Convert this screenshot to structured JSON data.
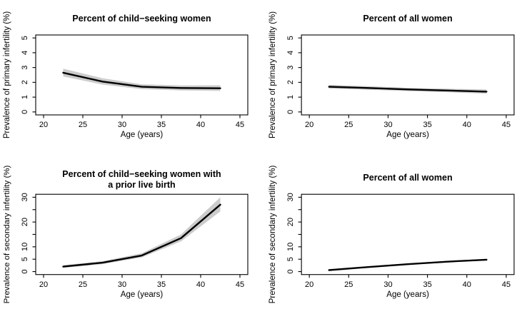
{
  "figure": {
    "background": "#ffffff",
    "line_color": "#000000",
    "band_color": "#cccccc",
    "axis_color": "#000000"
  },
  "chart_data": [
    {
      "id": "primary-infertility-child-seeking",
      "type": "line",
      "title_lines": [
        "Percent of child−seeking women"
      ],
      "xlabel": "Age (years)",
      "ylabel": "Prevalence of primary infertility (%)",
      "xlim": [
        20,
        45
      ],
      "ylim": [
        0,
        5
      ],
      "xticks": [
        20,
        25,
        30,
        35,
        40,
        45
      ],
      "xtick_labels": [
        "20",
        "25",
        "30",
        "35",
        "40",
        "45"
      ],
      "yticks": [
        0,
        1,
        2,
        3,
        4,
        5
      ],
      "ytick_labels": [
        "0",
        "1",
        "2",
        "3",
        "4",
        "5"
      ],
      "x": [
        22.5,
        27.5,
        32.5,
        37.5,
        42.5
      ],
      "y": [
        2.65,
        2.05,
        1.7,
        1.62,
        1.6
      ],
      "ci_upper": [
        2.92,
        2.28,
        1.87,
        1.79,
        1.8
      ],
      "ci_lower": [
        2.4,
        1.85,
        1.54,
        1.45,
        1.42
      ],
      "grid": false,
      "legend": "none"
    },
    {
      "id": "primary-infertility-all-women",
      "type": "line",
      "title_lines": [
        "Percent of all women"
      ],
      "xlabel": "Age (years)",
      "ylabel": "Prevalence of primary infertility (%)",
      "xlim": [
        20,
        45
      ],
      "ylim": [
        0,
        5
      ],
      "xticks": [
        20,
        25,
        30,
        35,
        40,
        45
      ],
      "xtick_labels": [
        "20",
        "25",
        "30",
        "35",
        "40",
        "45"
      ],
      "yticks": [
        0,
        1,
        2,
        3,
        4,
        5
      ],
      "ytick_labels": [
        "0",
        "1",
        "2",
        "3",
        "4",
        "5"
      ],
      "x": [
        22.5,
        27.5,
        32.5,
        37.5,
        42.5
      ],
      "y": [
        1.7,
        1.62,
        1.52,
        1.45,
        1.37
      ],
      "ci_upper": [
        1.83,
        1.74,
        1.63,
        1.57,
        1.52
      ],
      "ci_lower": [
        1.57,
        1.5,
        1.41,
        1.33,
        1.23
      ],
      "grid": false,
      "legend": "none"
    },
    {
      "id": "secondary-infertility-child-seeking-prior-birth",
      "type": "line",
      "title_lines": [
        "Percent of child−seeking women with",
        "a prior live birth"
      ],
      "xlabel": "Age (years)",
      "ylabel": "Prevalence of secondary infertility (%)",
      "xlim": [
        20,
        45
      ],
      "ylim": [
        0,
        30
      ],
      "xticks": [
        20,
        25,
        30,
        35,
        40,
        45
      ],
      "xtick_labels": [
        "20",
        "25",
        "30",
        "35",
        "40",
        "45"
      ],
      "yticks": [
        0,
        5,
        10,
        15,
        20,
        25,
        30
      ],
      "ytick_labels": [
        "0",
        "5",
        "10",
        "",
        "20",
        "",
        "30"
      ],
      "x": [
        22.5,
        27.5,
        32.5,
        37.5,
        42.5
      ],
      "y": [
        2.0,
        3.6,
        6.5,
        13.5,
        27.0
      ],
      "ci_upper": [
        2.6,
        4.2,
        7.4,
        15.0,
        30.0
      ],
      "ci_lower": [
        1.5,
        3.0,
        5.7,
        12.2,
        24.3
      ],
      "grid": false,
      "legend": "none"
    },
    {
      "id": "secondary-infertility-all-women",
      "type": "line",
      "title_lines": [
        "Percent of all women"
      ],
      "xlabel": "Age (years)",
      "ylabel": "Prevalence of secondary infertility (%)",
      "xlim": [
        20,
        45
      ],
      "ylim": [
        0,
        30
      ],
      "xticks": [
        20,
        25,
        30,
        35,
        40,
        45
      ],
      "xtick_labels": [
        "20",
        "25",
        "30",
        "35",
        "40",
        "45"
      ],
      "yticks": [
        0,
        5,
        10,
        15,
        20,
        25,
        30
      ],
      "ytick_labels": [
        "0",
        "5",
        "10",
        "",
        "20",
        "",
        "30"
      ],
      "x": [
        22.5,
        27.5,
        32.5,
        37.5,
        42.5
      ],
      "y": [
        0.6,
        1.85,
        3.0,
        4.0,
        4.8
      ],
      "ci_upper": [
        0.9,
        2.15,
        3.3,
        4.3,
        5.15
      ],
      "ci_lower": [
        0.35,
        1.55,
        2.7,
        3.7,
        4.5
      ],
      "grid": false,
      "legend": "none"
    }
  ]
}
